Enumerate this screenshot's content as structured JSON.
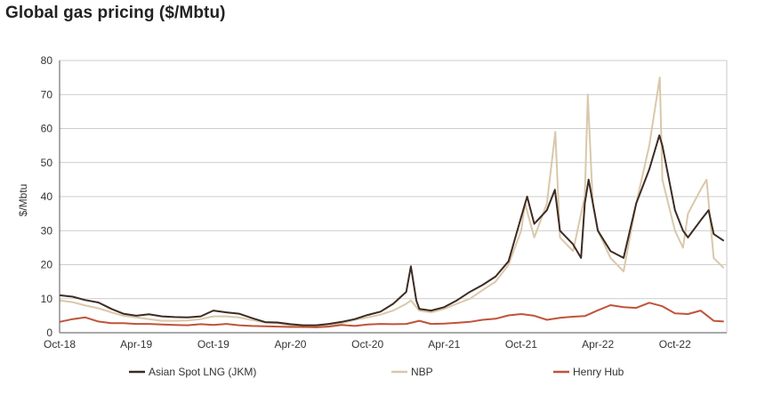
{
  "chart_data": {
    "type": "line",
    "title": "Global gas pricing ($/Mbtu)",
    "ylabel": "$/Mbtu",
    "xlabel": "",
    "ylim": [
      0,
      80
    ],
    "yticks": [
      0,
      10,
      20,
      30,
      40,
      50,
      60,
      70,
      80
    ],
    "xlim": [
      "2018-10",
      "2023-02"
    ],
    "x_ticks": [
      {
        "date": "2018-10",
        "label": "Oct-18"
      },
      {
        "date": "2019-04",
        "label": "Apr-19"
      },
      {
        "date": "2019-10",
        "label": "Oct-19"
      },
      {
        "date": "2020-04",
        "label": "Apr-20"
      },
      {
        "date": "2020-10",
        "label": "Oct-20"
      },
      {
        "date": "2021-04",
        "label": "Apr-21"
      },
      {
        "date": "2021-10",
        "label": "Oct-21"
      },
      {
        "date": "2022-04",
        "label": "Apr-22"
      },
      {
        "date": "2022-10",
        "label": "Oct-22"
      }
    ],
    "grid": "horizontal",
    "legend_position": "bottom",
    "series": [
      {
        "name": "Asian Spot LNG (JKM)",
        "color": "#3d2b22",
        "points": [
          [
            "2018-10",
            11.0
          ],
          [
            "2018-11",
            10.6
          ],
          [
            "2018-12",
            9.6
          ],
          [
            "2019-01",
            8.9
          ],
          [
            "2019-02",
            7.0
          ],
          [
            "2019-03",
            5.6
          ],
          [
            "2019-04",
            5.0
          ],
          [
            "2019-05",
            5.4
          ],
          [
            "2019-06",
            4.8
          ],
          [
            "2019-07",
            4.6
          ],
          [
            "2019-08",
            4.5
          ],
          [
            "2019-09",
            4.8
          ],
          [
            "2019-10",
            6.5
          ],
          [
            "2019-11",
            6.0
          ],
          [
            "2019-12",
            5.6
          ],
          [
            "2020-01",
            4.3
          ],
          [
            "2020-02",
            3.1
          ],
          [
            "2020-03",
            3.0
          ],
          [
            "2020-04",
            2.5
          ],
          [
            "2020-05",
            2.2
          ],
          [
            "2020-06",
            2.2
          ],
          [
            "2020-07",
            2.6
          ],
          [
            "2020-08",
            3.2
          ],
          [
            "2020-09",
            4.0
          ],
          [
            "2020-10",
            5.2
          ],
          [
            "2020-11",
            6.2
          ],
          [
            "2020-12",
            8.5
          ],
          [
            "2021-01",
            12.0
          ],
          [
            "2021-01-12",
            19.5
          ],
          [
            "2021-01-25",
            9.5
          ],
          [
            "2021-02",
            7.0
          ],
          [
            "2021-03",
            6.5
          ],
          [
            "2021-04",
            7.5
          ],
          [
            "2021-05",
            9.5
          ],
          [
            "2021-06",
            12.0
          ],
          [
            "2021-07",
            14.0
          ],
          [
            "2021-08",
            16.5
          ],
          [
            "2021-09",
            21.0
          ],
          [
            "2021-10",
            34.0
          ],
          [
            "2021-10-15",
            40.0
          ],
          [
            "2021-11",
            32.0
          ],
          [
            "2021-12",
            36.0
          ],
          [
            "2021-12-20",
            42.0
          ],
          [
            "2022-01",
            30.0
          ],
          [
            "2022-02",
            26.0
          ],
          [
            "2022-02-20",
            22.0
          ],
          [
            "2022-03",
            38.0
          ],
          [
            "2022-03-10",
            45.0
          ],
          [
            "2022-04",
            30.0
          ],
          [
            "2022-05",
            24.0
          ],
          [
            "2022-06",
            22.0
          ],
          [
            "2022-07",
            38.0
          ],
          [
            "2022-08",
            48.0
          ],
          [
            "2022-08-25",
            58.0
          ],
          [
            "2022-09",
            55.0
          ],
          [
            "2022-10",
            36.0
          ],
          [
            "2022-10-20",
            30.0
          ],
          [
            "2022-11",
            28.0
          ],
          [
            "2022-12",
            33.0
          ],
          [
            "2022-12-20",
            36.0
          ],
          [
            "2023-01",
            29.0
          ],
          [
            "2023-01-25",
            27.0
          ]
        ]
      },
      {
        "name": "NBP",
        "color": "#d9c8aa",
        "points": [
          [
            "2018-10",
            9.5
          ],
          [
            "2018-11",
            9.0
          ],
          [
            "2018-12",
            8.0
          ],
          [
            "2019-01",
            7.2
          ],
          [
            "2019-02",
            6.0
          ],
          [
            "2019-03",
            5.0
          ],
          [
            "2019-04",
            4.5
          ],
          [
            "2019-05",
            4.0
          ],
          [
            "2019-06",
            3.5
          ],
          [
            "2019-07",
            3.5
          ],
          [
            "2019-08",
            3.6
          ],
          [
            "2019-09",
            4.0
          ],
          [
            "2019-10",
            4.8
          ],
          [
            "2019-11",
            4.8
          ],
          [
            "2019-12",
            4.5
          ],
          [
            "2020-01",
            3.7
          ],
          [
            "2020-02",
            3.0
          ],
          [
            "2020-03",
            2.8
          ],
          [
            "2020-04",
            2.2
          ],
          [
            "2020-05",
            1.6
          ],
          [
            "2020-06",
            2.0
          ],
          [
            "2020-07",
            2.0
          ],
          [
            "2020-08",
            2.8
          ],
          [
            "2020-09",
            3.8
          ],
          [
            "2020-10",
            4.5
          ],
          [
            "2020-11",
            5.3
          ],
          [
            "2020-12",
            6.5
          ],
          [
            "2021-01",
            8.5
          ],
          [
            "2021-01-12",
            9.5
          ],
          [
            "2021-02",
            6.5
          ],
          [
            "2021-03",
            6.0
          ],
          [
            "2021-04",
            7.0
          ],
          [
            "2021-05",
            8.5
          ],
          [
            "2021-06",
            10.0
          ],
          [
            "2021-07",
            12.5
          ],
          [
            "2021-08",
            15.0
          ],
          [
            "2021-09",
            20.0
          ],
          [
            "2021-10",
            30.0
          ],
          [
            "2021-10-10",
            38.0
          ],
          [
            "2021-11",
            28.0
          ],
          [
            "2021-12",
            38.0
          ],
          [
            "2021-12-21",
            59.0
          ],
          [
            "2022-01",
            28.0
          ],
          [
            "2022-02",
            24.0
          ],
          [
            "2022-03",
            40.0
          ],
          [
            "2022-03-08",
            70.0
          ],
          [
            "2022-03-20",
            38.0
          ],
          [
            "2022-04",
            30.0
          ],
          [
            "2022-05",
            22.0
          ],
          [
            "2022-06",
            18.0
          ],
          [
            "2022-07",
            38.0
          ],
          [
            "2022-08",
            55.0
          ],
          [
            "2022-08-26",
            75.0
          ],
          [
            "2022-09",
            45.0
          ],
          [
            "2022-10",
            30.0
          ],
          [
            "2022-10-20",
            25.0
          ],
          [
            "2022-11",
            35.0
          ],
          [
            "2022-12",
            42.0
          ],
          [
            "2022-12-15",
            45.0
          ],
          [
            "2023-01",
            22.0
          ],
          [
            "2023-01-25",
            19.0
          ]
        ]
      },
      {
        "name": "Henry Hub",
        "color": "#c0533a",
        "points": [
          [
            "2018-10",
            3.2
          ],
          [
            "2018-11",
            4.0
          ],
          [
            "2018-12",
            4.5
          ],
          [
            "2019-01",
            3.3
          ],
          [
            "2019-02",
            2.8
          ],
          [
            "2019-03",
            2.8
          ],
          [
            "2019-04",
            2.6
          ],
          [
            "2019-05",
            2.6
          ],
          [
            "2019-06",
            2.4
          ],
          [
            "2019-07",
            2.3
          ],
          [
            "2019-08",
            2.2
          ],
          [
            "2019-09",
            2.5
          ],
          [
            "2019-10",
            2.3
          ],
          [
            "2019-11",
            2.6
          ],
          [
            "2019-12",
            2.2
          ],
          [
            "2020-01",
            2.0
          ],
          [
            "2020-02",
            1.9
          ],
          [
            "2020-03",
            1.8
          ],
          [
            "2020-04",
            1.7
          ],
          [
            "2020-05",
            1.7
          ],
          [
            "2020-06",
            1.6
          ],
          [
            "2020-07",
            1.8
          ],
          [
            "2020-08",
            2.3
          ],
          [
            "2020-09",
            2.0
          ],
          [
            "2020-10",
            2.4
          ],
          [
            "2020-11",
            2.6
          ],
          [
            "2020-12",
            2.5
          ],
          [
            "2021-01",
            2.6
          ],
          [
            "2021-02",
            3.5
          ],
          [
            "2021-03",
            2.6
          ],
          [
            "2021-04",
            2.7
          ],
          [
            "2021-05",
            2.9
          ],
          [
            "2021-06",
            3.2
          ],
          [
            "2021-07",
            3.8
          ],
          [
            "2021-08",
            4.1
          ],
          [
            "2021-09",
            5.1
          ],
          [
            "2021-10",
            5.5
          ],
          [
            "2021-11",
            5.0
          ],
          [
            "2021-12",
            3.8
          ],
          [
            "2022-01",
            4.4
          ],
          [
            "2022-02",
            4.7
          ],
          [
            "2022-03",
            4.9
          ],
          [
            "2022-04",
            6.6
          ],
          [
            "2022-05",
            8.1
          ],
          [
            "2022-06",
            7.5
          ],
          [
            "2022-07",
            7.3
          ],
          [
            "2022-08",
            8.8
          ],
          [
            "2022-09",
            7.8
          ],
          [
            "2022-10",
            5.7
          ],
          [
            "2022-11",
            5.5
          ],
          [
            "2022-12",
            6.5
          ],
          [
            "2023-01",
            3.5
          ],
          [
            "2023-01-25",
            3.3
          ]
        ]
      }
    ]
  }
}
